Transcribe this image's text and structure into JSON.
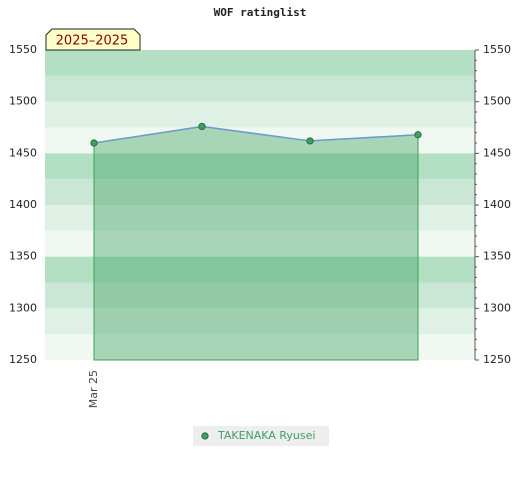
{
  "chart_data": {
    "type": "line",
    "title": "WOF ratinglist",
    "badge": "2025–2025",
    "categories": [
      "Mar 25",
      null,
      null,
      null
    ],
    "series": [
      {
        "name": "TAKENAKA Ryusei",
        "color": "#3f9f5f",
        "line_color": "#6a9ad0",
        "values": [
          1460,
          1476,
          1462,
          1468
        ]
      }
    ],
    "ylim": [
      1250,
      1550
    ],
    "yticks": [
      1250,
      1300,
      1350,
      1400,
      1450,
      1500,
      1550
    ],
    "area": true,
    "legend": "bottom"
  }
}
